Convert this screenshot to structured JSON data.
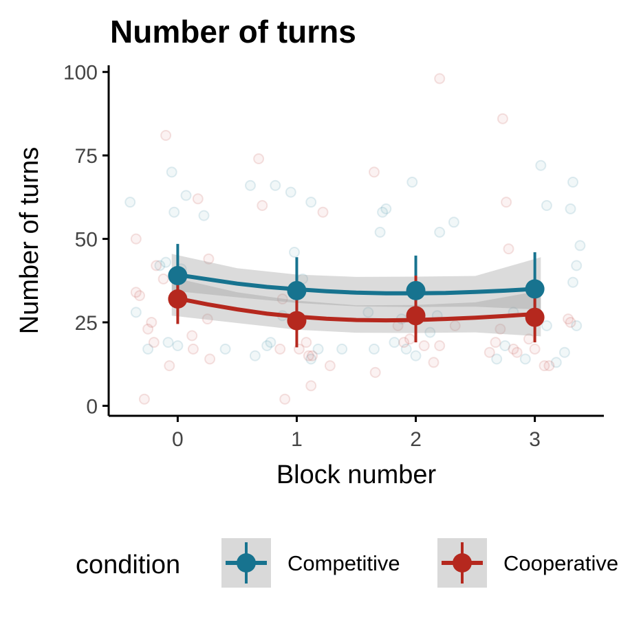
{
  "chart_data": {
    "type": "line",
    "title": "Number of turns",
    "xlabel": "Block number",
    "ylabel": "Number of turns",
    "x_ticks": [
      0,
      1,
      2,
      3
    ],
    "y_ticks": [
      0,
      25,
      50,
      75,
      100
    ],
    "xlim": [
      -0.58,
      3.58
    ],
    "ylim": [
      -3,
      102
    ],
    "grid": false,
    "legend": {
      "title": "condition",
      "placement": "bottom",
      "entries": [
        "Competitive",
        "Cooperative"
      ]
    },
    "series": [
      {
        "name": "Competitive",
        "color": "#17738f",
        "x": [
          0,
          1,
          2,
          3
        ],
        "mean": [
          39,
          34.5,
          34.5,
          35
        ],
        "ci_low": [
          30,
          25,
          24,
          24
        ],
        "ci_high": [
          48.5,
          44.5,
          45,
          46
        ],
        "fit": [
          [
            -0.05,
            39.5
          ],
          [
            0.25,
            37.9
          ],
          [
            0.5,
            36.6
          ],
          [
            0.75,
            35.6
          ],
          [
            1.0,
            34.9
          ],
          [
            1.25,
            34.3
          ],
          [
            1.5,
            33.9
          ],
          [
            1.75,
            33.7
          ],
          [
            2.0,
            33.7
          ],
          [
            2.25,
            33.8
          ],
          [
            2.5,
            34.1
          ],
          [
            2.75,
            34.5
          ],
          [
            3.05,
            35.1
          ]
        ],
        "band": [
          [
            -0.05,
            34.5,
            45.5
          ],
          [
            0.5,
            32.5,
            41.2
          ],
          [
            1.0,
            30.8,
            39.3
          ],
          [
            1.5,
            29.8,
            38.6
          ],
          [
            2.0,
            29.6,
            38.7
          ],
          [
            2.5,
            29.7,
            38.9
          ],
          [
            3.05,
            28.8,
            44.5
          ]
        ],
        "points": [
          [
            -0.4,
            61
          ],
          [
            -0.35,
            28
          ],
          [
            -0.25,
            17
          ],
          [
            -0.15,
            42
          ],
          [
            -0.1,
            43
          ],
          [
            -0.08,
            19
          ],
          [
            -0.05,
            70
          ],
          [
            -0.03,
            58
          ],
          [
            0.0,
            18
          ],
          [
            0.03,
            41
          ],
          [
            0.07,
            63
          ],
          [
            0.22,
            57
          ],
          [
            0.4,
            17
          ],
          [
            0.61,
            66
          ],
          [
            0.65,
            15
          ],
          [
            0.75,
            18
          ],
          [
            0.78,
            19
          ],
          [
            0.82,
            66
          ],
          [
            0.88,
            27
          ],
          [
            0.95,
            64
          ],
          [
            0.98,
            46
          ],
          [
            1.05,
            38
          ],
          [
            1.12,
            14
          ],
          [
            1.18,
            17
          ],
          [
            1.12,
            61
          ],
          [
            1.38,
            17
          ],
          [
            1.6,
            28
          ],
          [
            1.65,
            17
          ],
          [
            1.7,
            52
          ],
          [
            1.72,
            58
          ],
          [
            1.75,
            59
          ],
          [
            1.82,
            19
          ],
          [
            1.88,
            26
          ],
          [
            1.92,
            17
          ],
          [
            1.97,
            67
          ],
          [
            2.0,
            15
          ],
          [
            2.12,
            22
          ],
          [
            2.18,
            27
          ],
          [
            2.2,
            52
          ],
          [
            2.32,
            55
          ],
          [
            2.68,
            14
          ],
          [
            2.75,
            18
          ],
          [
            2.82,
            28
          ],
          [
            2.92,
            14
          ],
          [
            3.05,
            72
          ],
          [
            3.1,
            24
          ],
          [
            3.1,
            60
          ],
          [
            3.18,
            13
          ],
          [
            3.25,
            16
          ],
          [
            3.3,
            59
          ],
          [
            3.32,
            37
          ],
          [
            3.32,
            67
          ],
          [
            3.35,
            42
          ],
          [
            3.38,
            48
          ],
          [
            3.35,
            24
          ]
        ]
      },
      {
        "name": "Cooperative",
        "color": "#b5281e",
        "x": [
          0,
          1,
          2,
          3
        ],
        "mean": [
          32,
          25.5,
          27,
          26.5
        ],
        "ci_low": [
          24.5,
          17.5,
          19,
          19
        ],
        "ci_high": [
          40.5,
          34,
          39,
          34.5
        ],
        "fit": [
          [
            -0.05,
            32.5
          ],
          [
            0.25,
            30.4
          ],
          [
            0.5,
            28.9
          ],
          [
            0.75,
            27.6
          ],
          [
            1.0,
            26.7
          ],
          [
            1.25,
            26.1
          ],
          [
            1.5,
            25.7
          ],
          [
            1.75,
            25.6
          ],
          [
            2.0,
            25.7
          ],
          [
            2.25,
            26.0
          ],
          [
            2.5,
            26.4
          ],
          [
            2.75,
            26.9
          ],
          [
            3.05,
            27.6
          ]
        ],
        "band": [
          [
            -0.05,
            27.0,
            38.5
          ],
          [
            0.5,
            24.8,
            34.0
          ],
          [
            1.0,
            22.8,
            31.5
          ],
          [
            1.5,
            21.9,
            30.1
          ],
          [
            2.0,
            21.8,
            30.2
          ],
          [
            2.5,
            22.0,
            31.0
          ],
          [
            3.05,
            20.8,
            34.5
          ]
        ],
        "points": [
          [
            -0.35,
            50
          ],
          [
            -0.35,
            34
          ],
          [
            -0.32,
            33
          ],
          [
            -0.28,
            2
          ],
          [
            -0.25,
            23
          ],
          [
            -0.22,
            25
          ],
          [
            -0.2,
            19
          ],
          [
            -0.18,
            42
          ],
          [
            -0.12,
            38
          ],
          [
            -0.1,
            81
          ],
          [
            -0.07,
            12
          ],
          [
            0.12,
            21
          ],
          [
            0.13,
            17
          ],
          [
            0.17,
            62
          ],
          [
            0.25,
            26
          ],
          [
            0.26,
            44
          ],
          [
            0.27,
            14
          ],
          [
            0.68,
            74
          ],
          [
            0.71,
            60
          ],
          [
            0.86,
            17
          ],
          [
            0.88,
            32
          ],
          [
            0.9,
            2
          ],
          [
            1.02,
            17
          ],
          [
            1.08,
            19
          ],
          [
            1.1,
            15
          ],
          [
            1.13,
            15
          ],
          [
            1.12,
            6
          ],
          [
            1.22,
            58
          ],
          [
            1.28,
            12
          ],
          [
            1.65,
            70
          ],
          [
            1.66,
            10
          ],
          [
            1.85,
            24
          ],
          [
            1.9,
            19
          ],
          [
            1.95,
            20
          ],
          [
            2.07,
            18
          ],
          [
            2.15,
            13
          ],
          [
            2.2,
            18
          ],
          [
            2.2,
            98
          ],
          [
            2.33,
            24
          ],
          [
            2.62,
            16
          ],
          [
            2.67,
            19
          ],
          [
            2.71,
            23
          ],
          [
            2.73,
            86
          ],
          [
            2.76,
            61
          ],
          [
            2.78,
            47
          ],
          [
            2.82,
            17
          ],
          [
            2.85,
            16
          ],
          [
            2.95,
            20
          ],
          [
            3.0,
            17
          ],
          [
            3.08,
            12
          ],
          [
            3.12,
            12
          ],
          [
            3.28,
            26
          ],
          [
            3.3,
            25
          ]
        ]
      }
    ]
  }
}
